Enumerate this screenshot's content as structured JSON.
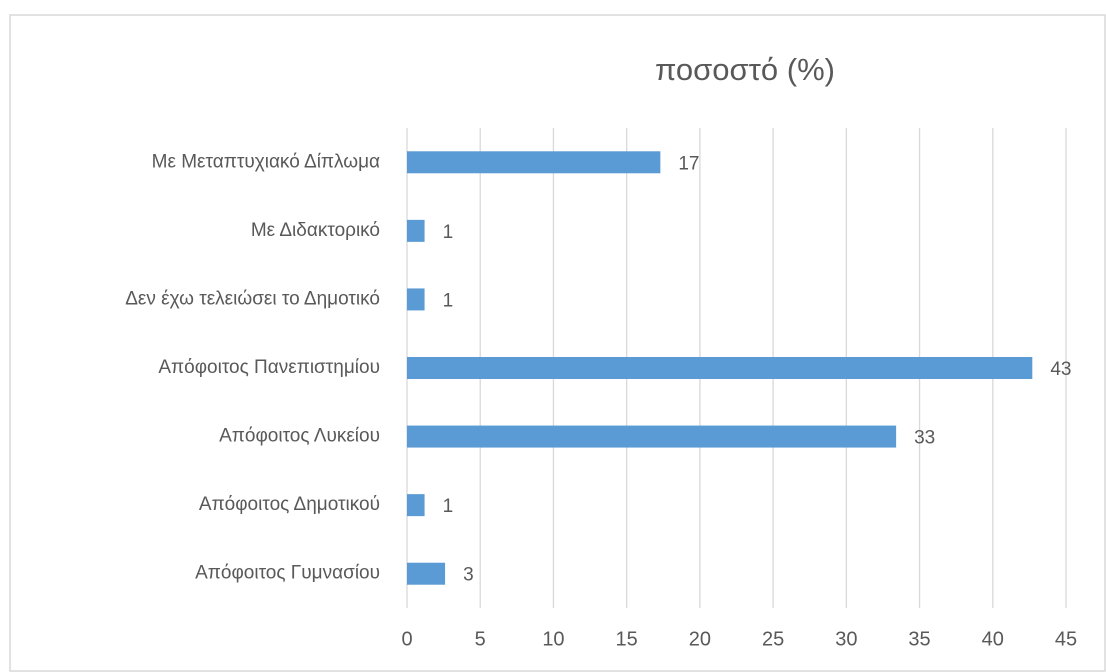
{
  "chart_data": {
    "type": "hbar",
    "title": "ποσοστό (%)",
    "categories": [
      "Με Μεταπτυχιακό Δίπλωμα",
      "Με Διδακτορικό",
      "Δεν έχω τελειώσει το Δημοτικό",
      "Απόφοιτος Πανεπιστημίου",
      "Απόφοιτος Λυκείου",
      "Απόφοιτος Δημοτικού",
      "Απόφοιτος Γυμνασίου"
    ],
    "values": [
      17.3,
      1.2,
      1.2,
      42.7,
      33.4,
      1.2,
      2.6
    ],
    "value_labels": [
      "17",
      "1",
      "1",
      "43",
      "33",
      "1",
      "3"
    ],
    "color": "#5b9bd5",
    "xlim": [
      0,
      45
    ],
    "xticks": [
      0,
      5,
      10,
      15,
      20,
      25,
      30,
      35,
      40,
      45
    ],
    "grid": true
  }
}
